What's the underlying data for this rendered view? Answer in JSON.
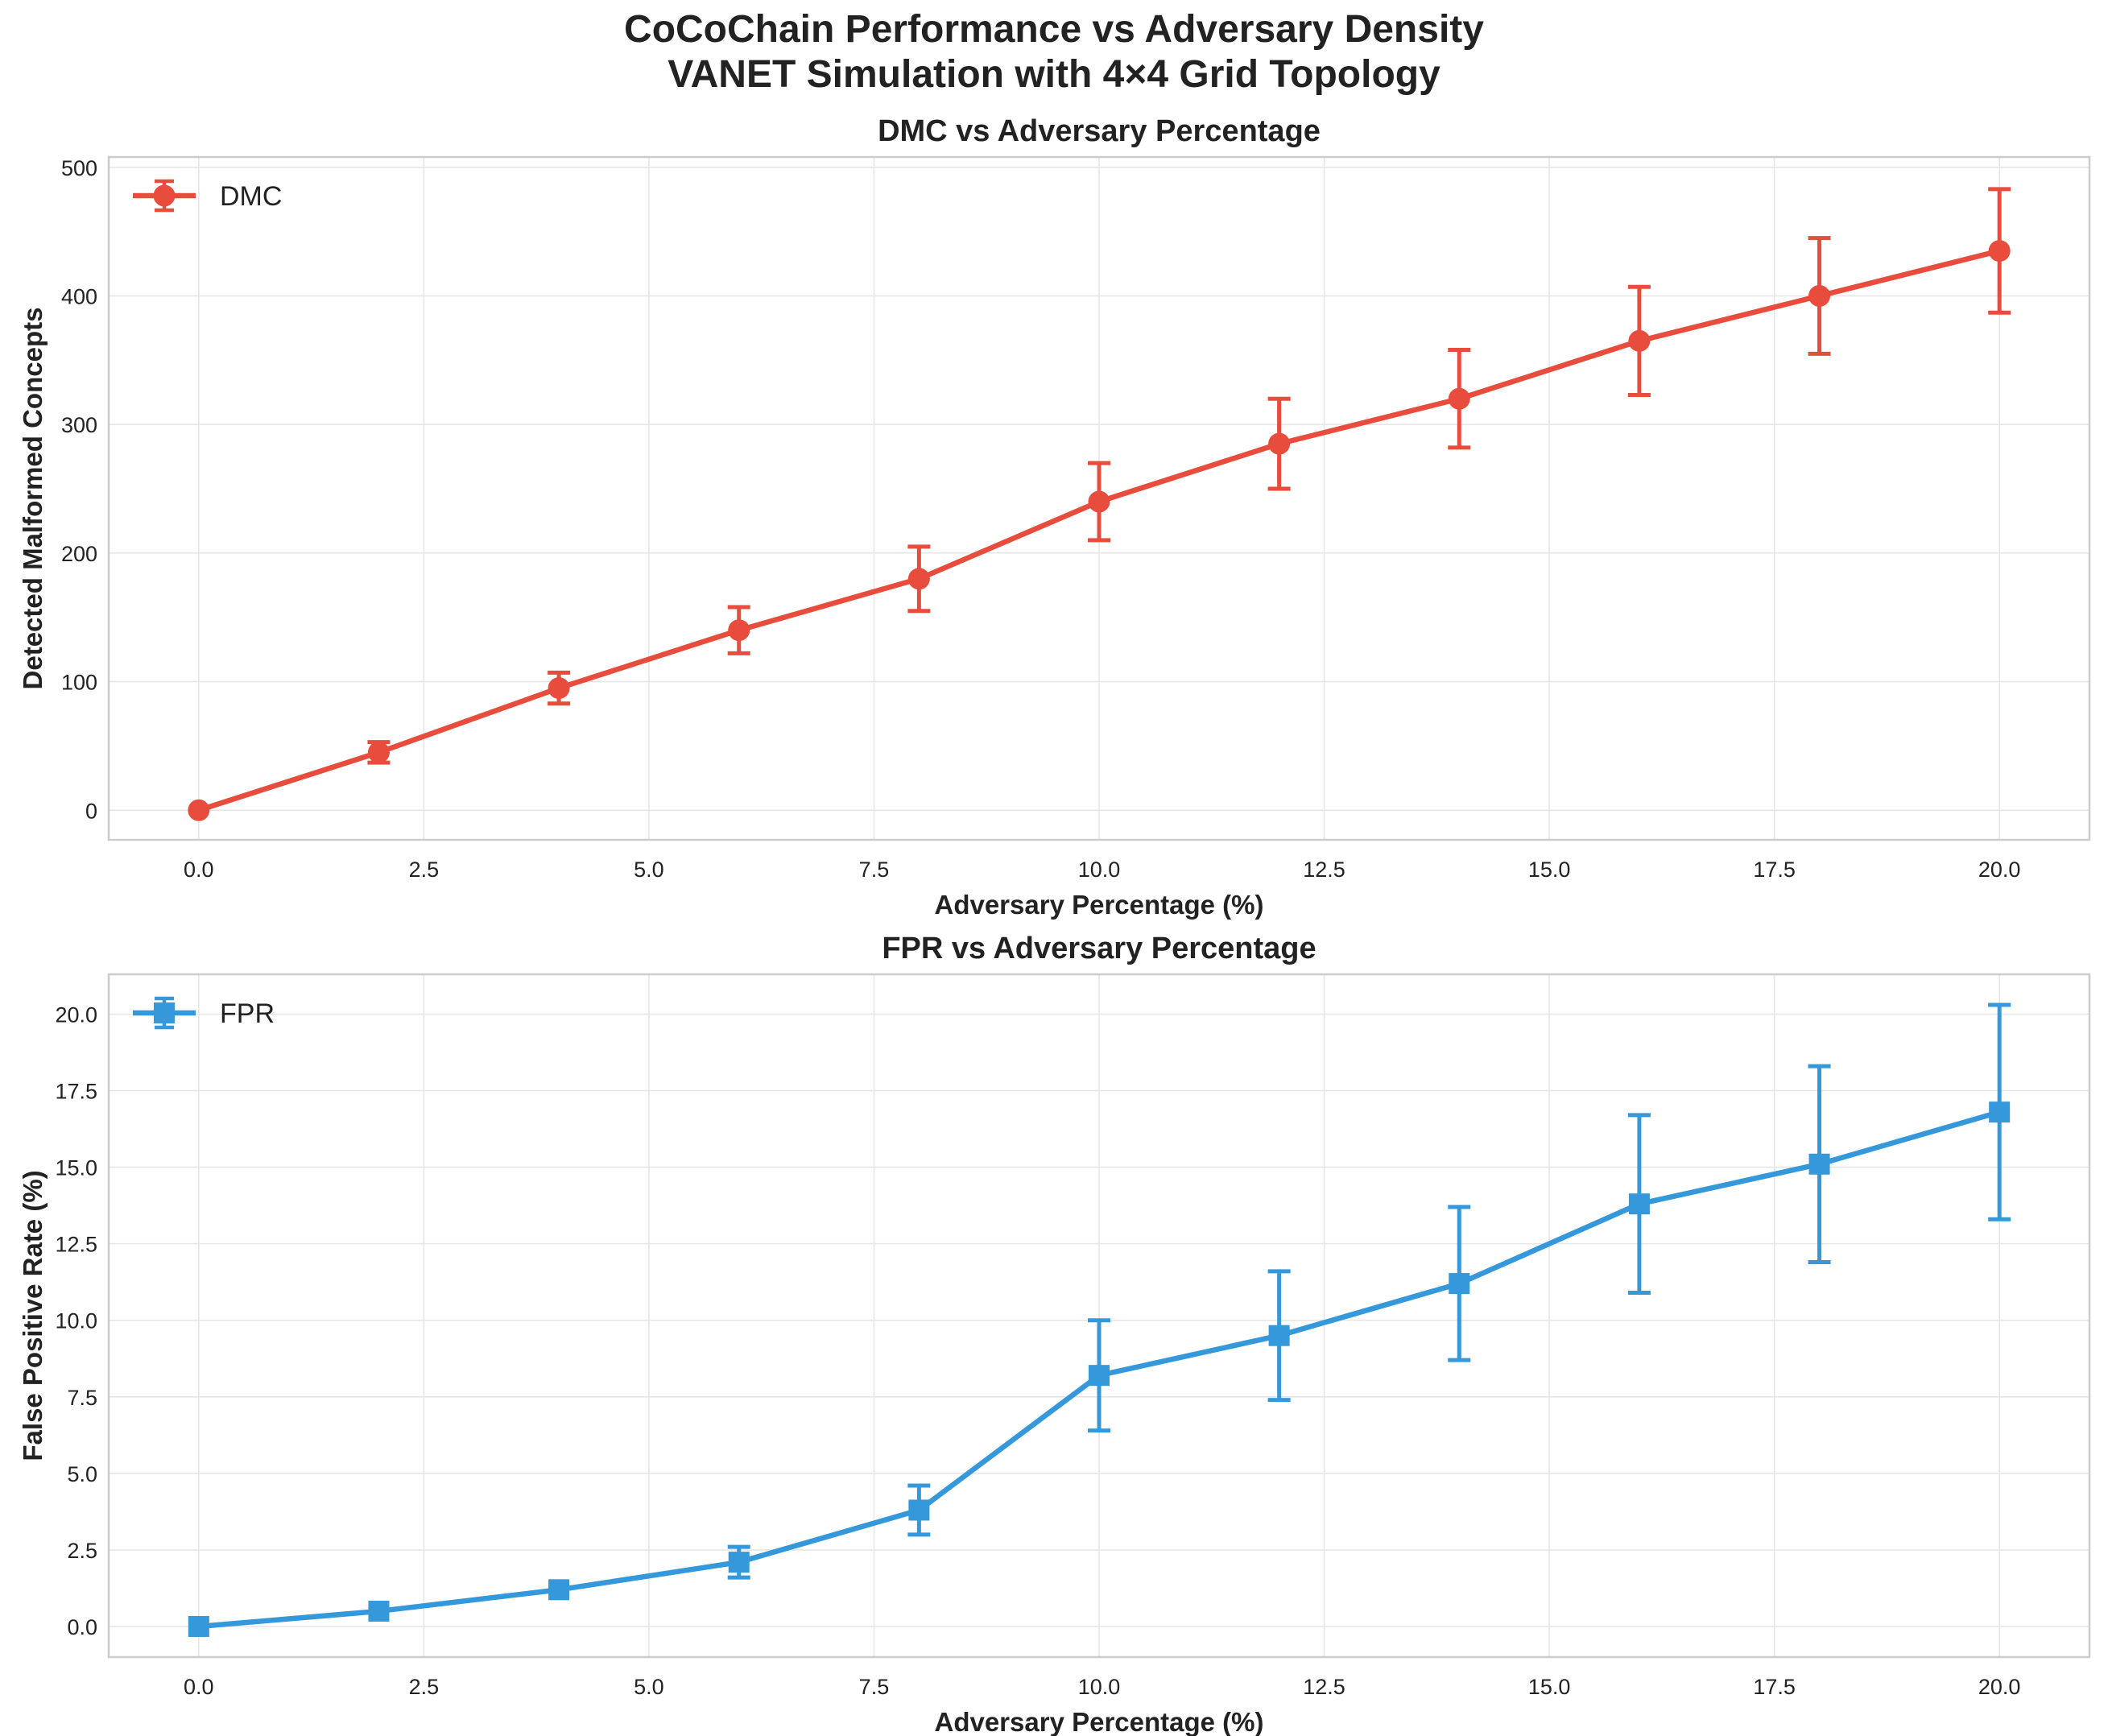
{
  "figure": {
    "title_line1": "CoCoChain Performance vs Adversary Density",
    "title_line2": "VANET Simulation with 4×4 Grid Topology"
  },
  "chart_data": [
    {
      "type": "line",
      "title": "DMC vs Adversary Percentage",
      "xlabel": "Adversary Percentage (%)",
      "ylabel": "Detected Malformed Concepts",
      "xlim": [
        -1,
        21
      ],
      "ylim": [
        -23,
        508
      ],
      "xticks": [
        0,
        2.5,
        5,
        7.5,
        10,
        12.5,
        15,
        17.5,
        20
      ],
      "xtick_labels": [
        "0.0",
        "2.5",
        "5.0",
        "7.5",
        "10.0",
        "12.5",
        "15.0",
        "17.5",
        "20.0"
      ],
      "yticks": [
        0,
        100,
        200,
        300,
        400,
        500
      ],
      "ytick_labels": [
        "0",
        "100",
        "200",
        "300",
        "400",
        "500"
      ],
      "grid": true,
      "legend_position": "top-left",
      "series": [
        {
          "name": "DMC",
          "color": "#e74c3c",
          "marker": "circle",
          "x": [
            0,
            2,
            4,
            6,
            8,
            10,
            12,
            14,
            16,
            18,
            20
          ],
          "values": [
            0,
            45,
            95,
            140,
            180,
            240,
            285,
            320,
            365,
            400,
            435
          ],
          "errors": [
            0,
            8,
            12,
            18,
            25,
            30,
            35,
            38,
            42,
            45,
            48
          ]
        }
      ]
    },
    {
      "type": "line",
      "title": "FPR vs Adversary Percentage",
      "xlabel": "Adversary Percentage (%)",
      "ylabel": "False Positive Rate (%)",
      "xlim": [
        -1,
        21
      ],
      "ylim": [
        -1,
        21.3
      ],
      "xticks": [
        0,
        2.5,
        5,
        7.5,
        10,
        12.5,
        15,
        17.5,
        20
      ],
      "xtick_labels": [
        "0.0",
        "2.5",
        "5.0",
        "7.5",
        "10.0",
        "12.5",
        "15.0",
        "17.5",
        "20.0"
      ],
      "yticks": [
        0,
        2.5,
        5,
        7.5,
        10,
        12.5,
        15,
        17.5,
        20
      ],
      "ytick_labels": [
        "0.0",
        "2.5",
        "5.0",
        "7.5",
        "10.0",
        "12.5",
        "15.0",
        "17.5",
        "20.0"
      ],
      "grid": true,
      "legend_position": "top-left",
      "series": [
        {
          "name": "FPR",
          "color": "#3498db",
          "marker": "square",
          "x": [
            0,
            2,
            4,
            6,
            8,
            10,
            12,
            14,
            16,
            18,
            20
          ],
          "values": [
            0,
            0.5,
            1.2,
            2.1,
            3.8,
            8.2,
            9.5,
            11.2,
            13.8,
            15.1,
            16.8
          ],
          "errors": [
            0,
            0,
            0,
            0.5,
            0.8,
            1.8,
            2.1,
            2.5,
            2.9,
            3.2,
            3.5
          ]
        }
      ]
    }
  ]
}
